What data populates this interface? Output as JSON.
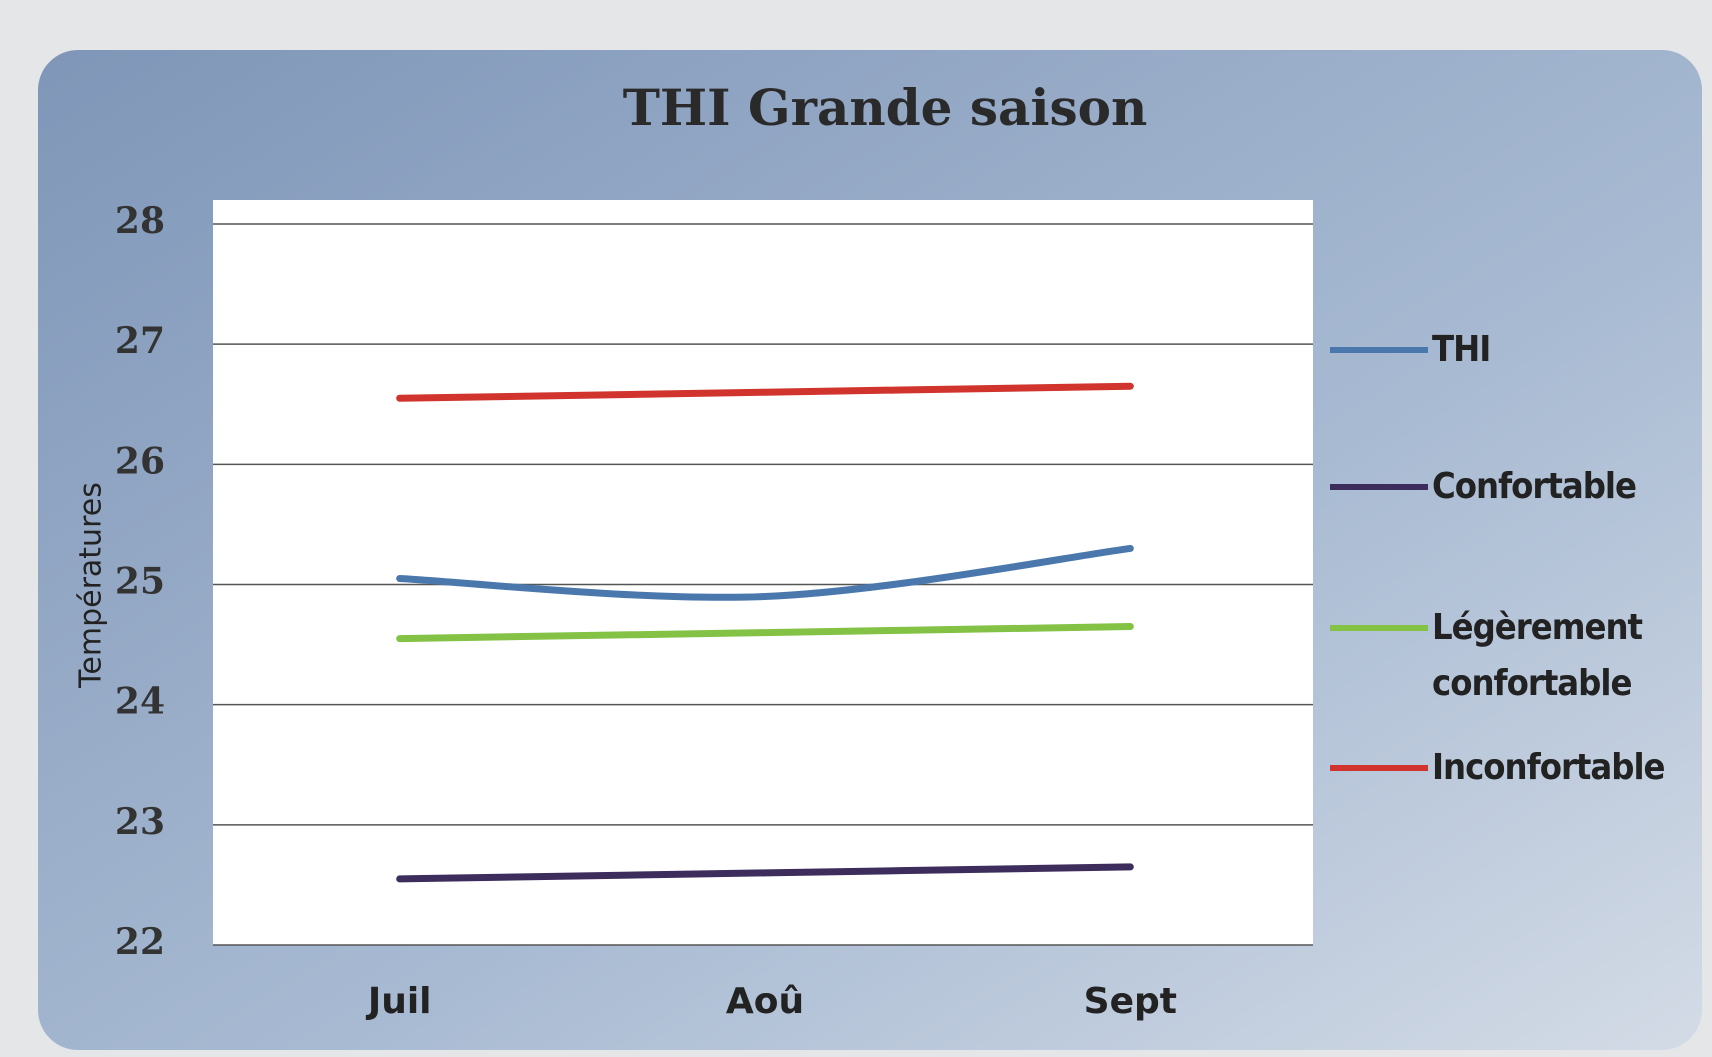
{
  "chart_data": {
    "type": "line",
    "title": "THI Grande saison",
    "y_label": "Températures",
    "categories": [
      "Juil",
      "Aoû",
      "Sept"
    ],
    "series": [
      {
        "name": "THI",
        "color": "#4a78ad",
        "values": [
          25.05,
          24.9,
          25.3
        ]
      },
      {
        "name": "Confortable",
        "color": "#3d2d5c",
        "values": [
          22.55,
          22.6,
          22.65
        ]
      },
      {
        "name": "Légèrement confortable",
        "color": "#84c246",
        "values": [
          24.55,
          24.6,
          24.65
        ]
      },
      {
        "name": "Inconfortable",
        "color": "#d0342c",
        "values": [
          26.55,
          26.6,
          26.65
        ]
      }
    ],
    "ylim": [
      22,
      28
    ],
    "yticks": [
      22,
      23,
      24,
      25,
      26,
      27,
      28
    ],
    "grid": true,
    "legend": "right",
    "smooth": true
  }
}
